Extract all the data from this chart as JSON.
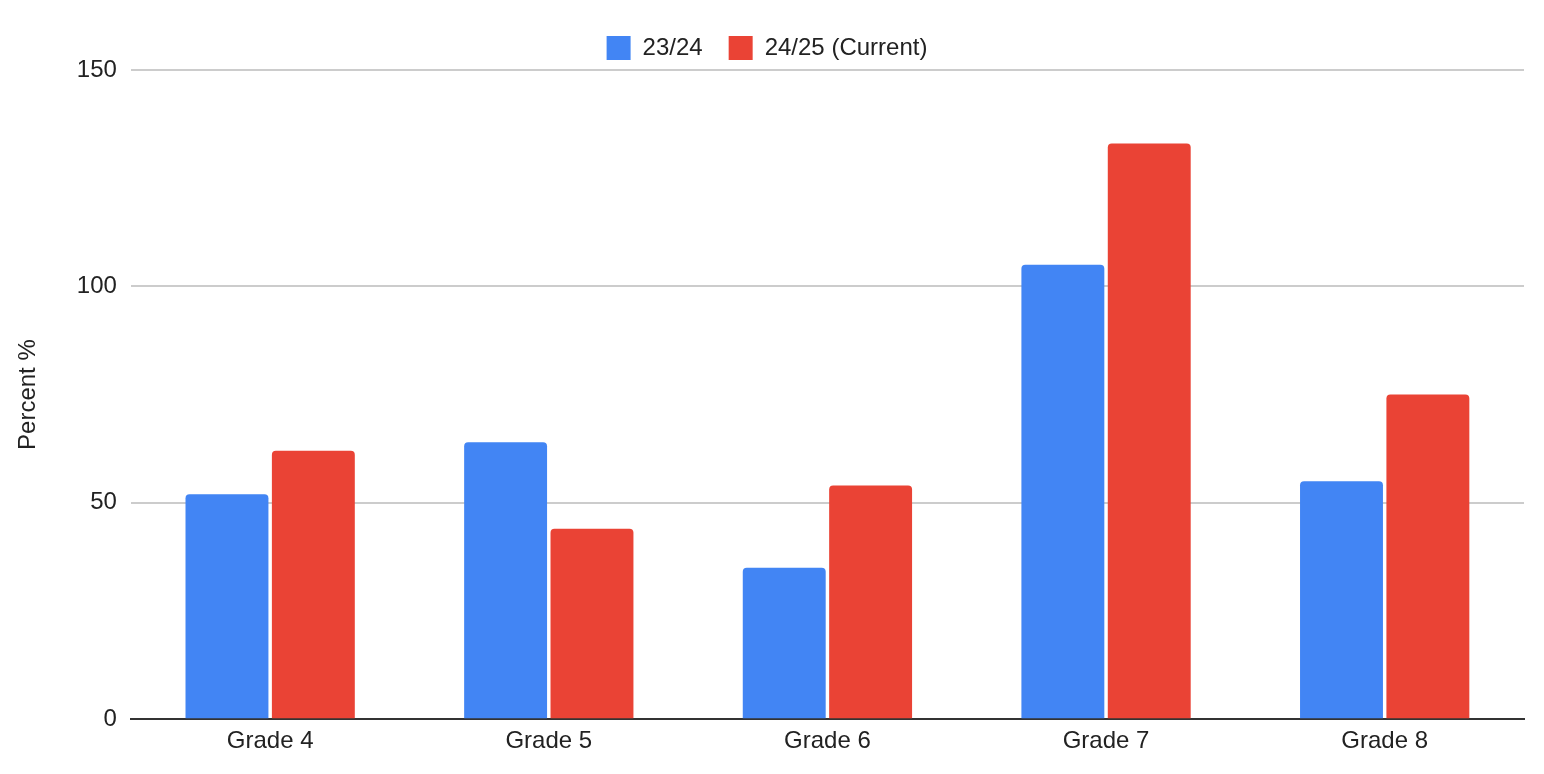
{
  "chart_data": {
    "type": "bar",
    "ylabel": "Percent %",
    "categories": [
      "Grade 4",
      "Grade 5",
      "Grade 6",
      "Grade 7",
      "Grade 8"
    ],
    "series": [
      {
        "name": "23/24",
        "color": "#4285f4",
        "values": [
          52,
          64,
          35,
          105,
          55
        ]
      },
      {
        "name": "24/25 (Current)",
        "color": "#ea4335",
        "values": [
          62,
          44,
          54,
          133,
          75
        ]
      }
    ],
    "ylim": [
      0,
      150
    ],
    "yticks": [
      0,
      50,
      100,
      150
    ],
    "grid": "y",
    "legend": "top"
  }
}
